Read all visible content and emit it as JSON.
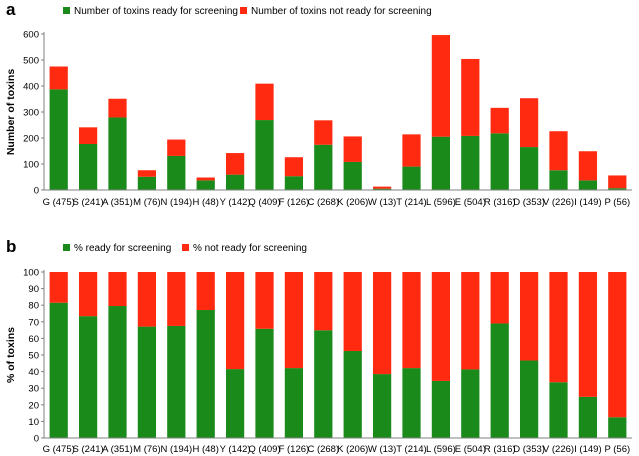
{
  "colors": {
    "ready": "#1a8a1a",
    "not_ready": "#ff2a0f",
    "axis": "#808080"
  },
  "chart_data": [
    {
      "type": "bar",
      "stacked": true,
      "panel_label": "a",
      "ylabel": "Number of toxins",
      "ylim": [
        0,
        600
      ],
      "yticks": [
        0,
        100,
        200,
        300,
        400,
        500,
        600
      ],
      "legend_position": "top-left",
      "categories": [
        "G (475)",
        "S (241)",
        "A (351)",
        "M (76)",
        "N (194)",
        "H (48)",
        "Y (142)",
        "Q (409)",
        "F (126)",
        "C (268)",
        "K (206)",
        "W (13)",
        "T (214)",
        "L (596)",
        "E (504)",
        "R (316)",
        "D (353)",
        "V (226)",
        "I (149)",
        "P (56)"
      ],
      "series": [
        {
          "name": "Number of toxins ready for screening",
          "values": [
            387,
            177,
            279,
            51,
            131,
            37,
            59,
            269,
            53,
            174,
            108,
            5,
            90,
            205,
            208,
            218,
            165,
            76,
            37,
            7
          ]
        },
        {
          "name": "Number of toxins not ready for screening",
          "values": [
            88,
            64,
            72,
            25,
            63,
            11,
            83,
            140,
            73,
            94,
            98,
            8,
            124,
            391,
            296,
            98,
            188,
            150,
            112,
            49
          ]
        }
      ]
    },
    {
      "type": "bar",
      "stacked": true,
      "panel_label": "b",
      "ylabel": "% of toxins",
      "ylim": [
        0,
        100
      ],
      "yticks": [
        0,
        10,
        20,
        30,
        40,
        50,
        60,
        70,
        80,
        90,
        100
      ],
      "legend_position": "top-left",
      "categories": [
        "G (475)",
        "S (241)",
        "A (351)",
        "M (76)",
        "N (194)",
        "H (48)",
        "Y (142)",
        "Q (409)",
        "F (126)",
        "C (268)",
        "K (206)",
        "W (13)",
        "T (214)",
        "L (596)",
        "E (504)",
        "R (316)",
        "D (353)",
        "V (226)",
        "I (149)",
        "P (56)"
      ],
      "series": [
        {
          "name": "% ready for screening",
          "values": [
            81.5,
            73.4,
            79.5,
            67.1,
            67.5,
            77.1,
            41.5,
            65.8,
            42.1,
            64.9,
            52.4,
            38.5,
            42.1,
            34.4,
            41.3,
            69.0,
            46.7,
            33.6,
            24.8,
            12.5
          ]
        },
        {
          "name": "% not ready for screening",
          "values": [
            18.5,
            26.6,
            20.5,
            32.9,
            32.5,
            22.9,
            58.5,
            34.2,
            57.9,
            35.1,
            47.6,
            61.5,
            57.9,
            65.6,
            58.7,
            31.0,
            53.3,
            66.4,
            75.2,
            87.5
          ]
        }
      ]
    }
  ]
}
